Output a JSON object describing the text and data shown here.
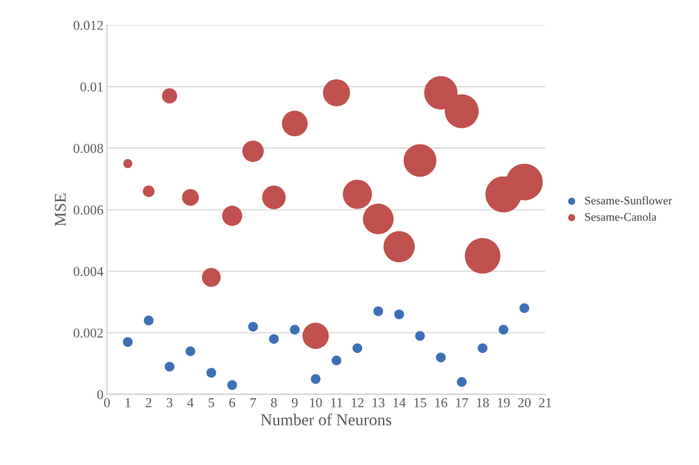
{
  "chart_data": {
    "type": "bubble",
    "xlabel": "Number of Neurons",
    "ylabel": "MSE",
    "x": [
      1,
      2,
      3,
      4,
      5,
      6,
      7,
      8,
      9,
      10,
      11,
      12,
      13,
      14,
      15,
      16,
      17,
      18,
      19,
      20
    ],
    "series": [
      {
        "name": "Sesame-Sunflower",
        "color": "#3d6fb6",
        "values": [
          0.0017,
          0.0024,
          0.0009,
          0.0014,
          0.0007,
          0.0003,
          0.0022,
          0.0018,
          0.0021,
          0.0005,
          0.0011,
          0.0015,
          0.0027,
          0.0026,
          0.0019,
          0.0012,
          0.0004,
          0.0015,
          0.0021,
          0.0028
        ],
        "sizes": [
          0.07,
          0.07,
          0.07,
          0.07,
          0.07,
          0.07,
          0.07,
          0.07,
          0.07,
          0.07,
          0.07,
          0.07,
          0.07,
          0.07,
          0.07,
          0.07,
          0.07,
          0.07,
          0.07,
          0.07
        ]
      },
      {
        "name": "Sesame-Canola",
        "color": "#c0504d",
        "values": [
          0.0075,
          0.0066,
          0.0097,
          0.0064,
          0.0038,
          0.0058,
          0.0079,
          0.0064,
          0.0088,
          0.0019,
          0.0098,
          0.0065,
          0.0057,
          0.0048,
          0.0076,
          0.0098,
          0.0092,
          0.0045,
          0.0065,
          0.0069
        ],
        "sizes": [
          0.06,
          0.1,
          0.17,
          0.21,
          0.26,
          0.3,
          0.34,
          0.41,
          0.49,
          0.51,
          0.54,
          0.63,
          0.69,
          0.72,
          0.79,
          0.82,
          0.85,
          0.93,
          0.96,
          1
        ]
      }
    ],
    "xlim": [
      0,
      21
    ],
    "xticks": [
      0,
      1,
      2,
      3,
      4,
      5,
      6,
      7,
      8,
      9,
      10,
      11,
      12,
      13,
      14,
      15,
      16,
      17,
      18,
      19,
      20,
      21
    ],
    "ylim": [
      0,
      0.012
    ],
    "yticks": [
      0,
      0.002,
      0.004,
      0.006,
      0.008,
      0.01,
      0.012
    ],
    "grid": "y",
    "legend": "right"
  }
}
